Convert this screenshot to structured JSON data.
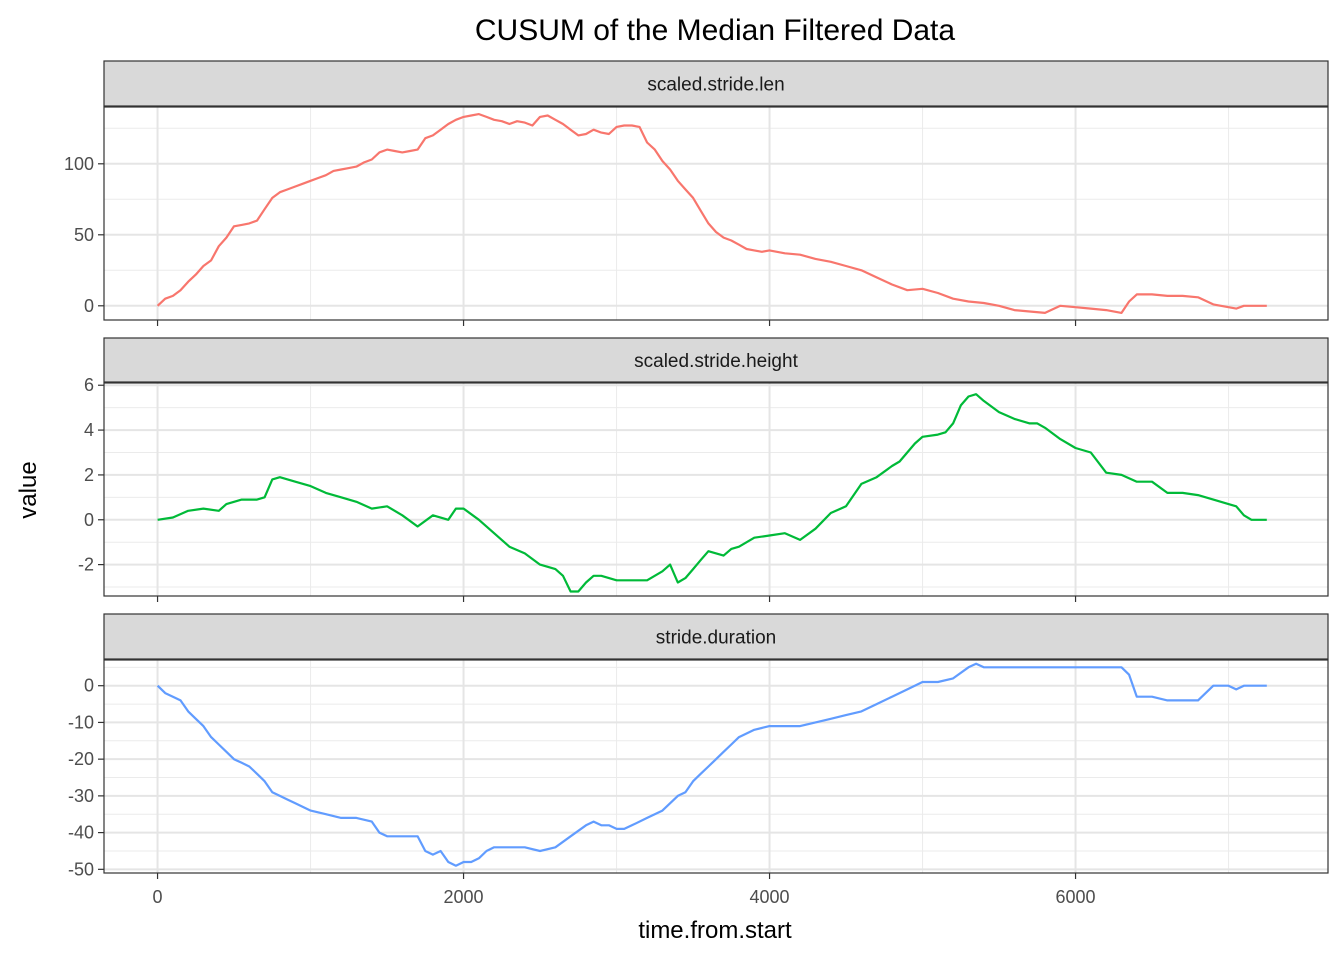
{
  "chart_data": {
    "type": "line",
    "title": "CUSUM of the Median Filtered Data",
    "xlabel": "time.from.start",
    "ylabel": "value",
    "xlim": [
      -350,
      7650
    ],
    "x_ticks": [
      0,
      2000,
      4000,
      6000
    ],
    "x_tick_labels": [
      "0",
      "2000",
      "4000",
      "6000"
    ],
    "grid": true,
    "legend": "none",
    "facets": [
      {
        "name": "scaled.stride.len",
        "color": "#F8766D",
        "ylim": [
          -10,
          140
        ],
        "y_ticks": [
          0,
          50,
          100
        ],
        "y_tick_labels": [
          "0",
          "50",
          "100"
        ],
        "x": [
          0,
          50,
          100,
          150,
          200,
          250,
          300,
          350,
          400,
          450,
          500,
          550,
          600,
          650,
          700,
          750,
          800,
          850,
          900,
          950,
          1000,
          1050,
          1100,
          1150,
          1200,
          1250,
          1300,
          1350,
          1400,
          1450,
          1500,
          1550,
          1600,
          1650,
          1700,
          1750,
          1800,
          1850,
          1900,
          1950,
          2000,
          2050,
          2100,
          2150,
          2200,
          2250,
          2300,
          2350,
          2400,
          2450,
          2500,
          2550,
          2600,
          2650,
          2700,
          2750,
          2800,
          2850,
          2900,
          2950,
          3000,
          3050,
          3100,
          3150,
          3200,
          3250,
          3300,
          3350,
          3400,
          3450,
          3500,
          3550,
          3600,
          3650,
          3700,
          3750,
          3800,
          3850,
          3900,
          3950,
          4000,
          4100,
          4200,
          4300,
          4400,
          4500,
          4600,
          4700,
          4800,
          4900,
          5000,
          5100,
          5200,
          5300,
          5400,
          5500,
          5600,
          5700,
          5800,
          5900,
          6000,
          6100,
          6200,
          6300,
          6350,
          6400,
          6500,
          6600,
          6700,
          6800,
          6900,
          7000,
          7050,
          7100,
          7250
        ],
        "y": [
          0,
          5,
          7,
          11,
          17,
          22,
          28,
          32,
          42,
          48,
          56,
          57,
          58,
          60,
          68,
          76,
          80,
          82,
          84,
          86,
          88,
          90,
          92,
          95,
          96,
          97,
          98,
          101,
          103,
          108,
          110,
          109,
          108,
          109,
          110,
          118,
          120,
          124,
          128,
          131,
          133,
          134,
          135,
          133,
          131,
          130,
          128,
          130,
          129,
          127,
          133,
          134,
          131,
          128,
          124,
          120,
          121,
          124,
          122,
          121,
          126,
          127,
          127,
          126,
          115,
          110,
          102,
          96,
          88,
          82,
          76,
          67,
          58,
          52,
          48,
          46,
          43,
          40,
          39,
          38,
          39,
          37,
          36,
          33,
          31,
          28,
          25,
          20,
          15,
          11,
          12,
          9,
          5,
          3,
          2,
          0,
          -3,
          -4,
          -5,
          0,
          -1,
          -2,
          -3,
          -5,
          3,
          8,
          8,
          7,
          7,
          6,
          1,
          -1,
          -2,
          0,
          0
        ]
      },
      {
        "name": "scaled.stride.height",
        "color": "#00BA38",
        "ylim": [
          -3.4,
          6.1
        ],
        "y_ticks": [
          -2,
          0,
          2,
          4,
          6
        ],
        "y_tick_labels": [
          "-2",
          "0",
          "2",
          "4",
          "6"
        ],
        "x": [
          0,
          100,
          200,
          300,
          400,
          450,
          550,
          650,
          700,
          750,
          800,
          900,
          1000,
          1100,
          1200,
          1300,
          1400,
          1500,
          1600,
          1700,
          1800,
          1900,
          1950,
          2000,
          2100,
          2200,
          2300,
          2400,
          2500,
          2600,
          2650,
          2700,
          2750,
          2800,
          2850,
          2900,
          3000,
          3100,
          3200,
          3300,
          3350,
          3400,
          3450,
          3500,
          3550,
          3600,
          3700,
          3750,
          3800,
          3900,
          4000,
          4100,
          4200,
          4300,
          4400,
          4500,
          4600,
          4700,
          4800,
          4850,
          4950,
          5000,
          5100,
          5150,
          5200,
          5250,
          5300,
          5350,
          5400,
          5500,
          5600,
          5700,
          5750,
          5800,
          5900,
          6000,
          6100,
          6200,
          6300,
          6400,
          6500,
          6600,
          6700,
          6800,
          6900,
          7000,
          7050,
          7100,
          7150,
          7250
        ],
        "y": [
          0,
          0.1,
          0.4,
          0.5,
          0.4,
          0.7,
          0.9,
          0.9,
          1.0,
          1.8,
          1.9,
          1.7,
          1.5,
          1.2,
          1.0,
          0.8,
          0.5,
          0.6,
          0.2,
          -0.3,
          0.2,
          0.0,
          0.5,
          0.5,
          0.0,
          -0.6,
          -1.2,
          -1.5,
          -2.0,
          -2.2,
          -2.5,
          -3.2,
          -3.2,
          -2.8,
          -2.5,
          -2.5,
          -2.7,
          -2.7,
          -2.7,
          -2.3,
          -2.0,
          -2.8,
          -2.6,
          -2.2,
          -1.8,
          -1.4,
          -1.6,
          -1.3,
          -1.2,
          -0.8,
          -0.7,
          -0.6,
          -0.9,
          -0.4,
          0.3,
          0.6,
          1.6,
          1.9,
          2.4,
          2.6,
          3.4,
          3.7,
          3.8,
          3.9,
          4.3,
          5.1,
          5.5,
          5.6,
          5.3,
          4.8,
          4.5,
          4.3,
          4.3,
          4.1,
          3.6,
          3.2,
          3.0,
          2.1,
          2.0,
          1.7,
          1.7,
          1.2,
          1.2,
          1.1,
          0.9,
          0.7,
          0.6,
          0.2,
          0.0,
          0.0
        ]
      },
      {
        "name": "stride.duration",
        "color": "#619CFF",
        "ylim": [
          -51,
          7
        ],
        "y_ticks": [
          -50,
          -40,
          -30,
          -20,
          -10,
          0
        ],
        "y_tick_labels": [
          "-50",
          "-40",
          "-30",
          "-20",
          "-10",
          "0"
        ],
        "x": [
          0,
          50,
          100,
          150,
          200,
          250,
          300,
          350,
          400,
          450,
          500,
          550,
          600,
          650,
          700,
          750,
          800,
          850,
          900,
          1000,
          1100,
          1200,
          1300,
          1400,
          1450,
          1500,
          1600,
          1700,
          1750,
          1800,
          1850,
          1900,
          1950,
          2000,
          2050,
          2100,
          2150,
          2200,
          2300,
          2400,
          2500,
          2600,
          2700,
          2800,
          2850,
          2900,
          2950,
          3000,
          3050,
          3100,
          3200,
          3300,
          3400,
          3450,
          3500,
          3550,
          3600,
          3650,
          3700,
          3750,
          3800,
          3900,
          4000,
          4100,
          4200,
          4300,
          4400,
          4500,
          4600,
          4700,
          4800,
          4900,
          5000,
          5100,
          5200,
          5300,
          5350,
          5400,
          5500,
          5600,
          5700,
          5800,
          5900,
          6000,
          6100,
          6200,
          6300,
          6350,
          6400,
          6500,
          6600,
          6700,
          6800,
          6900,
          7000,
          7050,
          7100,
          7250
        ],
        "y": [
          0,
          -2,
          -3,
          -4,
          -7,
          -9,
          -11,
          -14,
          -16,
          -18,
          -20,
          -21,
          -22,
          -24,
          -26,
          -29,
          -30,
          -31,
          -32,
          -34,
          -35,
          -36,
          -36,
          -37,
          -40,
          -41,
          -41,
          -41,
          -45,
          -46,
          -45,
          -48,
          -49,
          -48,
          -48,
          -47,
          -45,
          -44,
          -44,
          -44,
          -45,
          -44,
          -41,
          -38,
          -37,
          -38,
          -38,
          -39,
          -39,
          -38,
          -36,
          -34,
          -30,
          -29,
          -26,
          -24,
          -22,
          -20,
          -18,
          -16,
          -14,
          -12,
          -11,
          -11,
          -11,
          -10,
          -9,
          -8,
          -7,
          -5,
          -3,
          -1,
          1,
          1,
          2,
          5,
          6,
          5,
          5,
          5,
          5,
          5,
          5,
          5,
          5,
          5,
          5,
          3,
          -3,
          -3,
          -4,
          -4,
          -4,
          0,
          0,
          -1,
          0,
          0
        ]
      }
    ]
  }
}
